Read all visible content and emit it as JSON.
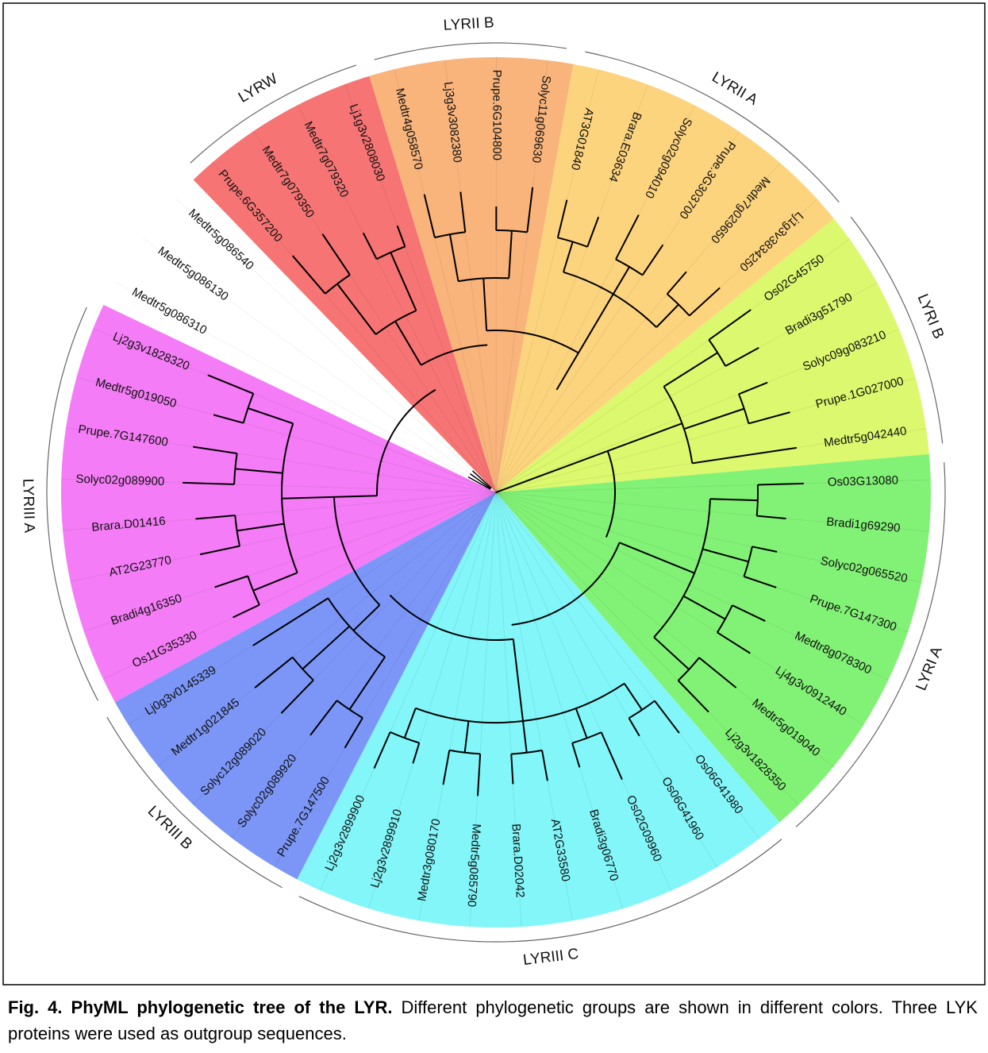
{
  "clades": [
    {
      "name": "LYRI B",
      "color": "#dcf86e",
      "leaves": [
        "Os02G45750",
        "Bradi3g51790",
        "Solyc09g083210",
        "Prupe.1G027000",
        "Medtr5g042440"
      ]
    },
    {
      "name": "LYRI A",
      "color": "#82f276",
      "leaves": [
        "Os03G13080",
        "Bradi1g69290",
        "Solyc02g065520",
        "Prupe.7G147300",
        "Medtr8g078300",
        "Lj4g3v0912440",
        "Medtr5g019040",
        "Lj2g3v1828350"
      ]
    },
    {
      "name": "LYRIII C",
      "color": "#82f6f8",
      "leaves": [
        "Os06G41980",
        "Os06G41960",
        "Os02G09960",
        "Bradi3g06770",
        "AT2G33580",
        "Brara.D02042",
        "Medtr5g085790",
        "Medtr3g080170",
        "Lj2g3v2899910",
        "Lj2g3v2899900"
      ]
    },
    {
      "name": "LYRIII B",
      "color": "#7c96f8",
      "leaves": [
        "Prupe.7G147500",
        "Solyc02g089920",
        "Solyc12g089020",
        "Medtr1g021845",
        "Lj0g3v0145339"
      ]
    },
    {
      "name": "LYRIII A",
      "color": "#f47cf6",
      "leaves": [
        "Os11G35330",
        "Bradi4g16350",
        "AT2G23770",
        "Brara.D01416",
        "Solyc02g089900",
        "Prupe.7G147600",
        "Medtr5g019050",
        "Lj2g3v1828320"
      ]
    },
    {
      "leaves": [
        "Medtr5g086310",
        "Medtr5g086130",
        "Medtr5g086540"
      ]
    },
    {
      "name": "LYRW",
      "color": "#f67474",
      "leaves": [
        "Prupe.6G357200",
        "Medtr7g079350",
        "Medtr7g079320",
        "Lj1g3v2808030"
      ]
    },
    {
      "name": "LYRII B",
      "color": "#f9b47c",
      "leaves": [
        "Medtr4g058570",
        "Lj3g3v3082380",
        "Prupe.6G104800",
        "Solyc11g069630"
      ]
    },
    {
      "name": "LYRII A",
      "color": "#fdd47e",
      "leaves": [
        "AT3G01840",
        "Brara.E03634",
        "Solyc02g094010",
        "Prupe.3G303700",
        "Medtr7g029650",
        "Lj1g3v3834250"
      ]
    }
  ],
  "caption": {
    "label": "Fig. 4. PhyML phylogenetic tree of the LYR.",
    "text": "Different phylogenetic groups are shown in different colors. Three LYK proteins were used as outgroup sequences."
  }
}
